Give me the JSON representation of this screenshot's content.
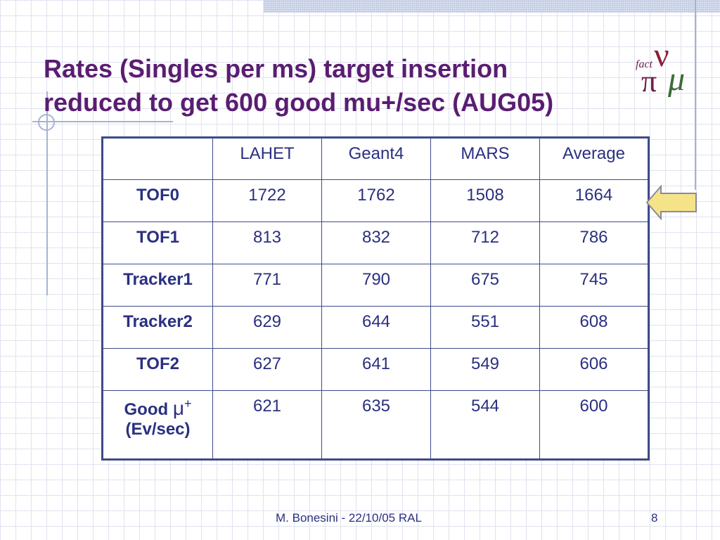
{
  "slide": {
    "title_line1": "Rates (Singles per ms) target insertion",
    "title_line2": "reduced to get 600 good mu+/sec (AUG05)",
    "logo": {
      "icon": "nufact-logo",
      "text_fact": "fact",
      "text_nu": "ν",
      "text_pi": "π",
      "text_mu": "μ"
    },
    "footer": "M. Bonesini - 22/10/05 RAL",
    "page_number": "8",
    "colors": {
      "title": "#5a1d72",
      "table_text": "#2a3080",
      "table_border": "#3d4a8a",
      "arrow_fill": "#f5e38a",
      "logo": "#6b1f4a"
    }
  },
  "table": {
    "columns": [
      "",
      "LAHET",
      "Geant4",
      "MARS",
      "Average"
    ],
    "rows": [
      {
        "label": "TOF0",
        "values": [
          "1722",
          "1762",
          "1508",
          "1664"
        ]
      },
      {
        "label": "TOF1",
        "values": [
          "813",
          "832",
          "712",
          "786"
        ]
      },
      {
        "label": "Tracker1",
        "values": [
          "771",
          "790",
          "675",
          "745"
        ]
      },
      {
        "label": "Tracker2",
        "values": [
          "629",
          "644",
          "551",
          "608"
        ]
      },
      {
        "label": "TOF2",
        "values": [
          "627",
          "641",
          "549",
          "606"
        ]
      }
    ],
    "last_row": {
      "label_prefix": "Good",
      "mu": "μ",
      "mu_sup": "+",
      "label_line2": "(Ev/sec)",
      "values": [
        "621",
        "635",
        "544",
        "600"
      ]
    }
  },
  "annotation": {
    "icon": "left-arrow-icon",
    "points_to_row": "TOF0"
  }
}
